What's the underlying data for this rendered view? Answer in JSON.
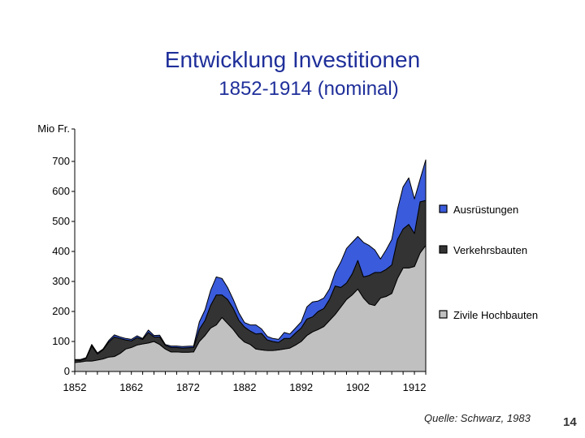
{
  "title": "Entwicklung Investitionen",
  "subtitle": "1852-1914 (nominal)",
  "source": "Quelle: Schwarz, 1983",
  "page_number": "14",
  "chart_data": {
    "type": "area",
    "stacked": true,
    "ylabel": "Mio Fr.",
    "ylim": [
      0,
      800
    ],
    "yticks": [
      0,
      100,
      200,
      300,
      400,
      500,
      600,
      700
    ],
    "xlim": [
      1852,
      1914
    ],
    "xtick_labels": [
      "1852",
      "1862",
      "1872",
      "1882",
      "1892",
      "1902",
      "1912"
    ],
    "legend_position": "right",
    "x": [
      1852,
      1853,
      1854,
      1855,
      1856,
      1857,
      1858,
      1859,
      1860,
      1861,
      1862,
      1863,
      1864,
      1865,
      1866,
      1867,
      1868,
      1869,
      1870,
      1871,
      1872,
      1873,
      1874,
      1875,
      1876,
      1877,
      1878,
      1879,
      1880,
      1881,
      1882,
      1883,
      1884,
      1885,
      1886,
      1887,
      1888,
      1889,
      1890,
      1891,
      1892,
      1893,
      1894,
      1895,
      1896,
      1897,
      1898,
      1899,
      1900,
      1901,
      1902,
      1903,
      1904,
      1905,
      1906,
      1907,
      1908,
      1909,
      1910,
      1911,
      1912,
      1913,
      1914
    ],
    "series": [
      {
        "name": "Zivile Hochbauten",
        "color": "#c0c0c0",
        "values": [
          30,
          32,
          35,
          35,
          38,
          42,
          48,
          50,
          60,
          75,
          80,
          88,
          92,
          95,
          100,
          90,
          75,
          65,
          65,
          64,
          64,
          65,
          100,
          120,
          145,
          155,
          180,
          160,
          140,
          115,
          98,
          90,
          75,
          72,
          70,
          70,
          72,
          75,
          78,
          88,
          100,
          120,
          132,
          140,
          150,
          170,
          190,
          215,
          240,
          255,
          275,
          245,
          225,
          220,
          245,
          250,
          260,
          310,
          345,
          345,
          350,
          395,
          420
        ]
      },
      {
        "name": "Verkehrsbauten",
        "color": "#333333",
        "values": [
          8,
          5,
          8,
          50,
          20,
          30,
          50,
          65,
          50,
          30,
          22,
          25,
          15,
          35,
          15,
          25,
          12,
          15,
          15,
          14,
          15,
          15,
          40,
          50,
          75,
          100,
          75,
          80,
          70,
          55,
          50,
          45,
          50,
          55,
          35,
          30,
          25,
          35,
          32,
          40,
          45,
          55,
          50,
          60,
          60,
          70,
          95,
          65,
          55,
          70,
          95,
          70,
          95,
          110,
          85,
          90,
          95,
          130,
          130,
          145,
          110,
          170,
          150
        ]
      },
      {
        "name": "Ausrüstungen",
        "color": "#3a5bdc",
        "values": [
          2,
          3,
          3,
          5,
          4,
          3,
          5,
          7,
          5,
          5,
          5,
          6,
          3,
          8,
          5,
          6,
          3,
          5,
          5,
          5,
          5,
          5,
          25,
          35,
          50,
          60,
          55,
          40,
          30,
          25,
          15,
          20,
          30,
          15,
          12,
          10,
          10,
          20,
          15,
          17,
          20,
          40,
          50,
          35,
          35,
          35,
          45,
          85,
          115,
          105,
          80,
          115,
          100,
          75,
          45,
          65,
          85,
          100,
          140,
          155,
          115,
          75,
          135
        ]
      }
    ]
  }
}
